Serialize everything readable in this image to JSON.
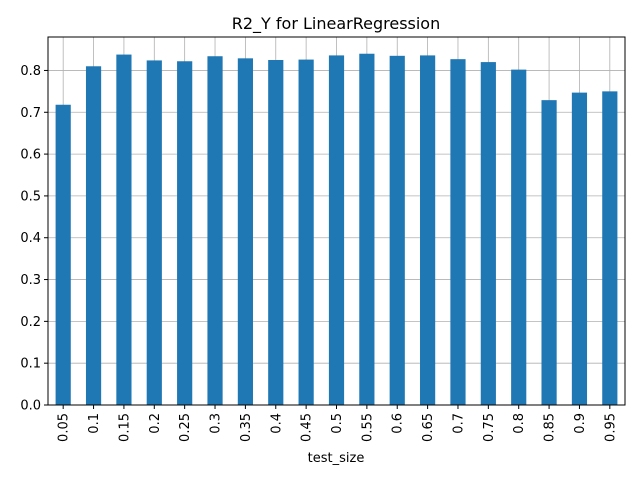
{
  "chart_data": {
    "type": "bar",
    "title": "R2_Y for LinearRegression",
    "xlabel": "test_size",
    "ylabel": "",
    "categories": [
      "0.05",
      "0.1",
      "0.15",
      "0.2",
      "0.25",
      "0.3",
      "0.35",
      "0.4",
      "0.45",
      "0.5",
      "0.55",
      "0.6",
      "0.65",
      "0.7",
      "0.75",
      "0.8",
      "0.85",
      "0.9",
      "0.95"
    ],
    "values": [
      0.718,
      0.81,
      0.838,
      0.824,
      0.822,
      0.834,
      0.829,
      0.825,
      0.826,
      0.836,
      0.84,
      0.835,
      0.836,
      0.827,
      0.82,
      0.802,
      0.729,
      0.747,
      0.75
    ],
    "yticks": [
      "0.0",
      "0.1",
      "0.2",
      "0.3",
      "0.4",
      "0.5",
      "0.6",
      "0.7",
      "0.8"
    ],
    "ylim": [
      0,
      0.88
    ],
    "grid": true,
    "bar_color": "#1f77b4"
  }
}
